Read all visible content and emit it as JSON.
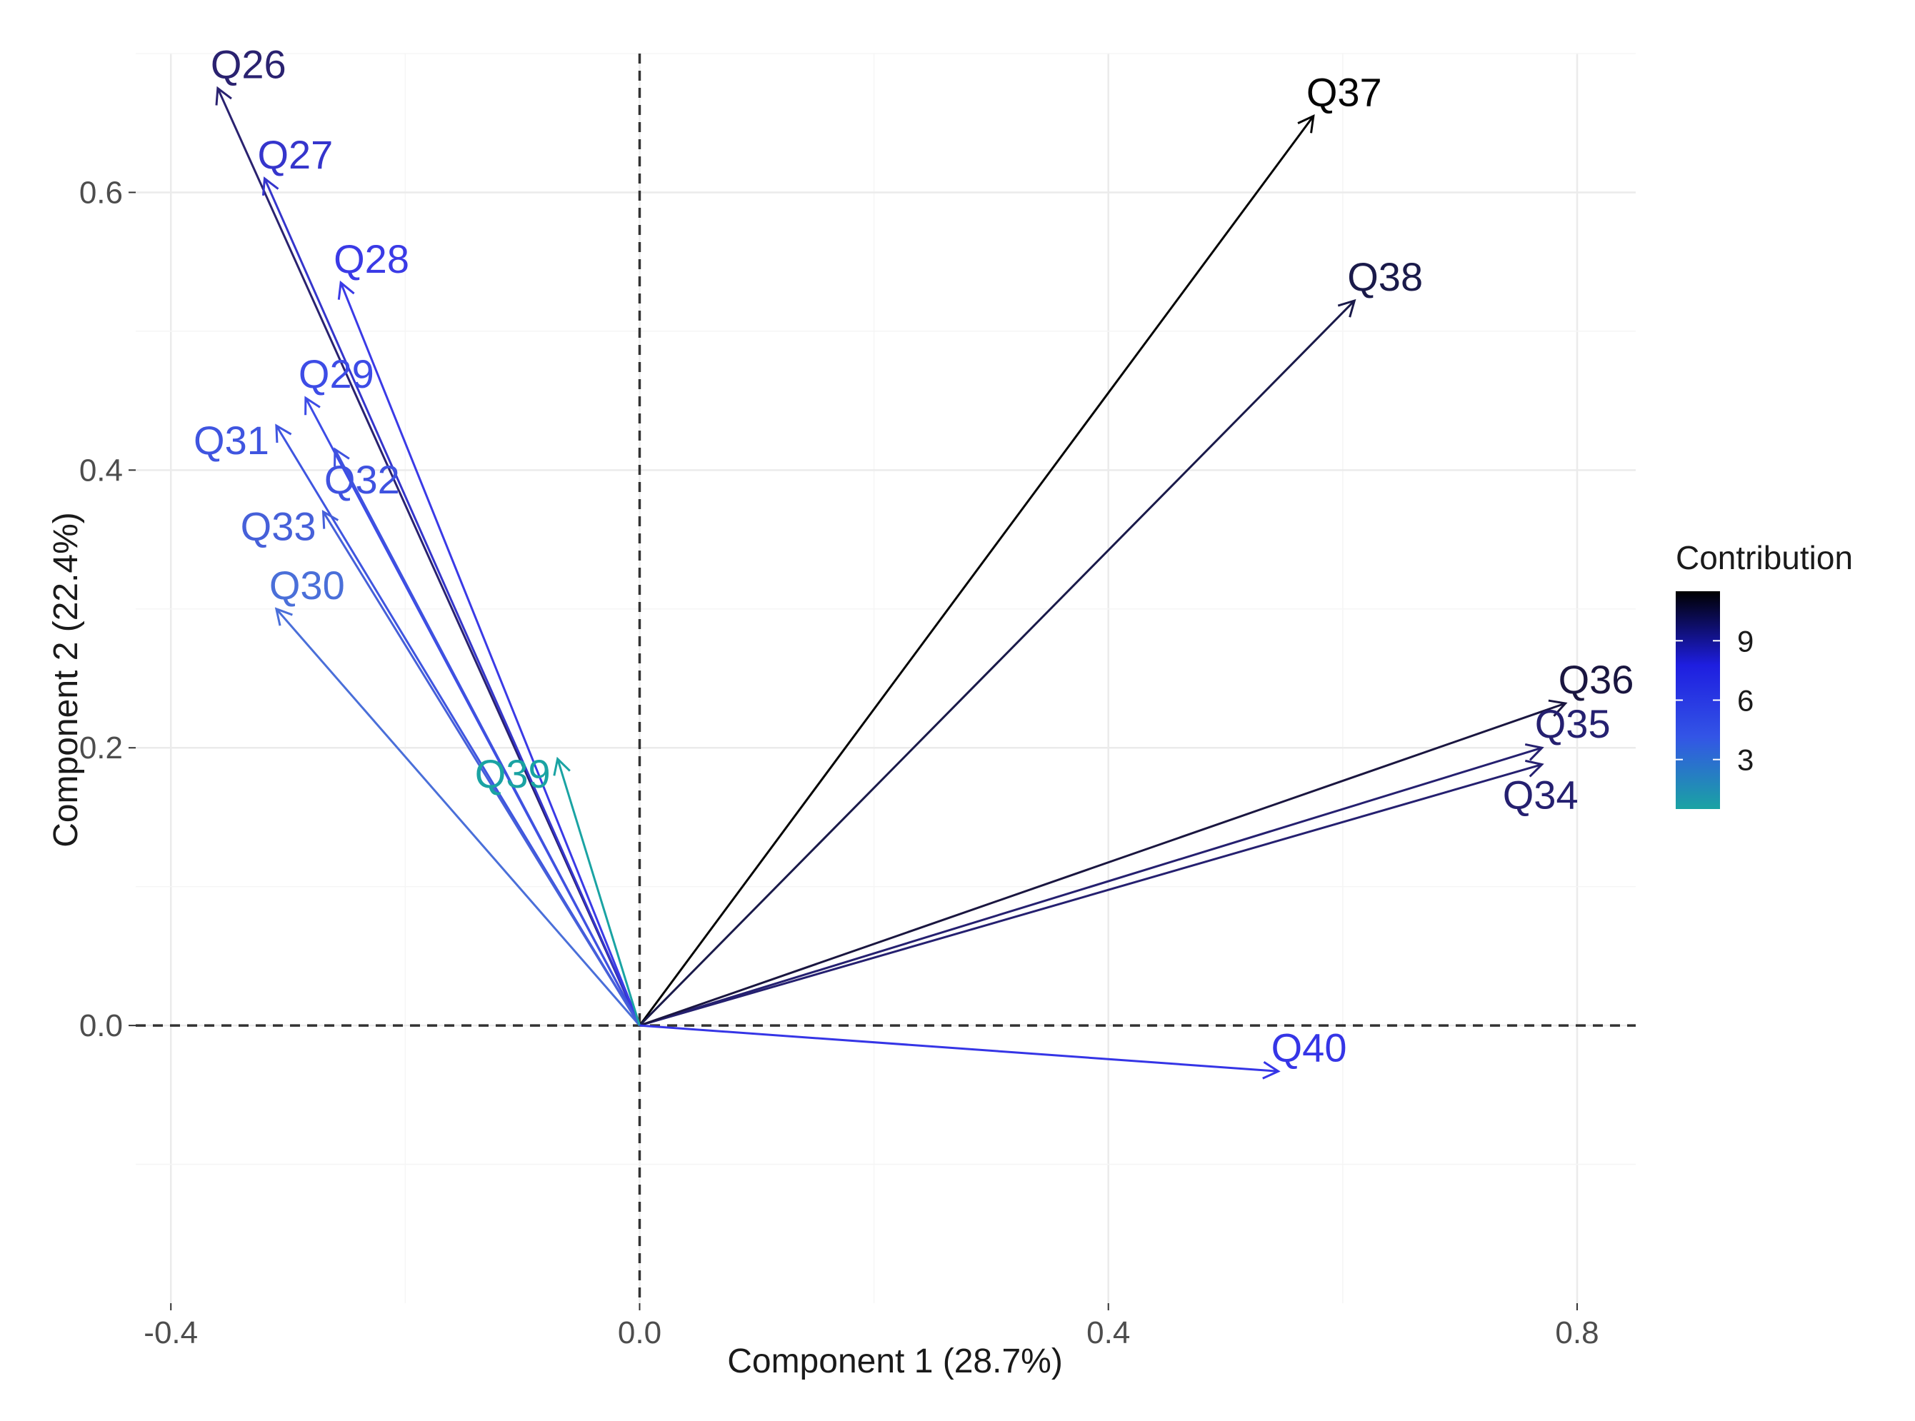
{
  "chart_data": {
    "type": "scatter",
    "subtype": "pca-variable-biplot",
    "xlabel": "Component 1 (28.7%)",
    "ylabel": "Component 2 (22.4%)",
    "xlim": [
      -0.43,
      0.85
    ],
    "ylim": [
      -0.2,
      0.7
    ],
    "x_ticks": [
      -0.4,
      0.0,
      0.4,
      0.8
    ],
    "x_tick_labels": [
      "-0.4",
      "0.0",
      "0.4",
      "0.8"
    ],
    "y_ticks": [
      0.0,
      0.2,
      0.4,
      0.6
    ],
    "y_tick_labels": [
      "0.0",
      "0.2",
      "0.4",
      "0.6"
    ],
    "grid": true,
    "reference_lines": {
      "x": 0,
      "y": 0,
      "style": "dashed"
    },
    "legend": {
      "title": "Contribution",
      "placement": "right",
      "scale_min": 0.5,
      "scale_max": 11.5,
      "ticks": [
        3,
        6,
        9
      ],
      "tick_labels": [
        "3",
        "6",
        "9"
      ],
      "gradient_colors": [
        "#1aa3a3",
        "#3355e6",
        "#1e1ee0",
        "#000000"
      ]
    },
    "variables": [
      {
        "name": "Q26",
        "x": -0.36,
        "y": 0.675,
        "contribution": 8.5,
        "color": "#2a2270",
        "label_pos": "above"
      },
      {
        "name": "Q27",
        "x": -0.32,
        "y": 0.61,
        "contribution": 6.5,
        "color": "#3535cc",
        "label_pos": "above"
      },
      {
        "name": "Q28",
        "x": -0.255,
        "y": 0.535,
        "contribution": 5.5,
        "color": "#3a3ae6",
        "label_pos": "above"
      },
      {
        "name": "Q29",
        "x": -0.285,
        "y": 0.452,
        "contribution": 5,
        "color": "#3d4ce6",
        "label_pos": "above"
      },
      {
        "name": "Q30",
        "x": -0.31,
        "y": 0.3,
        "contribution": 3.5,
        "color": "#4a6fd9",
        "label_pos": "above"
      },
      {
        "name": "Q31",
        "x": -0.31,
        "y": 0.432,
        "contribution": 4.5,
        "color": "#3f55e0",
        "label_pos": "left"
      },
      {
        "name": "Q32",
        "x": -0.26,
        "y": 0.415,
        "contribution": 4.5,
        "color": "#3f52e0",
        "label_pos": "right"
      },
      {
        "name": "Q33",
        "x": -0.27,
        "y": 0.37,
        "contribution": 4,
        "color": "#4660d9",
        "label_pos": "left"
      },
      {
        "name": "Q34",
        "x": 0.77,
        "y": 0.188,
        "contribution": 9,
        "color": "#252070",
        "label_pos": "below"
      },
      {
        "name": "Q35",
        "x": 0.77,
        "y": 0.2,
        "contribution": 9,
        "color": "#252070",
        "label_pos": "above"
      },
      {
        "name": "Q36",
        "x": 0.79,
        "y": 0.232,
        "contribution": 10,
        "color": "#1a1640",
        "label_pos": "above"
      },
      {
        "name": "Q37",
        "x": 0.575,
        "y": 0.655,
        "contribution": 11.5,
        "color": "#050505",
        "label_pos": "above"
      },
      {
        "name": "Q38",
        "x": 0.61,
        "y": 0.522,
        "contribution": 10,
        "color": "#1a1a4a",
        "label_pos": "above"
      },
      {
        "name": "Q39",
        "x": -0.07,
        "y": 0.192,
        "contribution": 0.8,
        "color": "#1aa3a3",
        "label_pos": "left"
      },
      {
        "name": "Q40",
        "x": 0.545,
        "y": -0.033,
        "contribution": 6,
        "color": "#3535e6",
        "label_pos": "above"
      }
    ]
  }
}
